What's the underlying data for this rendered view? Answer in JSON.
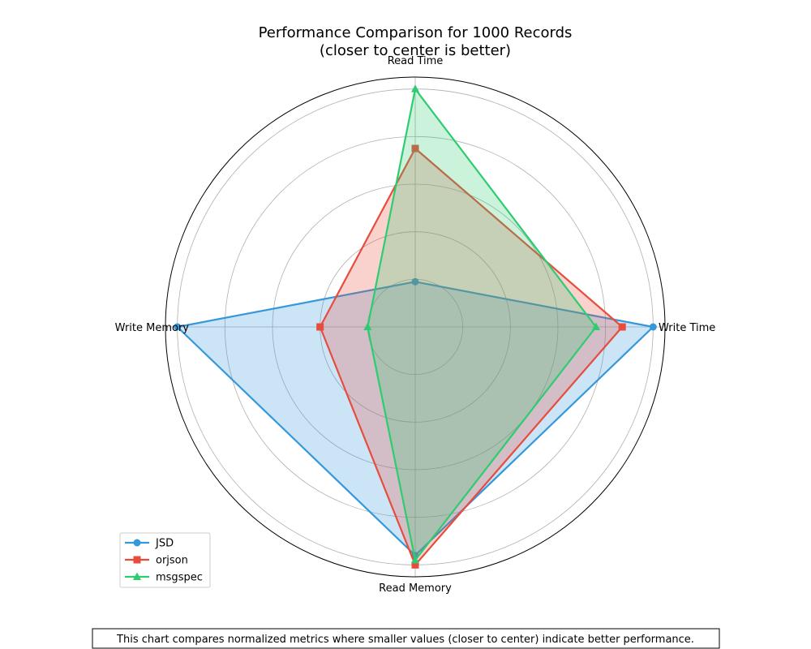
{
  "chart_data": {
    "type": "radar",
    "title": "Performance Comparison for 1000 Records",
    "subtitle": "(closer to center is better)",
    "axes": [
      "Read Time",
      "Write Time",
      "Read Memory",
      "Write Memory"
    ],
    "rmax": 1.05,
    "grid": true,
    "series": [
      {
        "name": "JSD",
        "values": [
          0.19,
          1.0,
          0.96,
          1.0
        ],
        "color": "#3498db",
        "marker": "circle"
      },
      {
        "name": "orjson",
        "values": [
          0.75,
          0.87,
          1.0,
          0.4
        ],
        "color": "#e74c3c",
        "marker": "square"
      },
      {
        "name": "msgspec",
        "values": [
          1.0,
          0.76,
          0.98,
          0.2
        ],
        "color": "#2ecc71",
        "marker": "triangle"
      }
    ],
    "legend": {
      "position": "lower-left"
    }
  },
  "caption": "This chart compares normalized metrics where smaller values (closer to center) indicate better performance."
}
